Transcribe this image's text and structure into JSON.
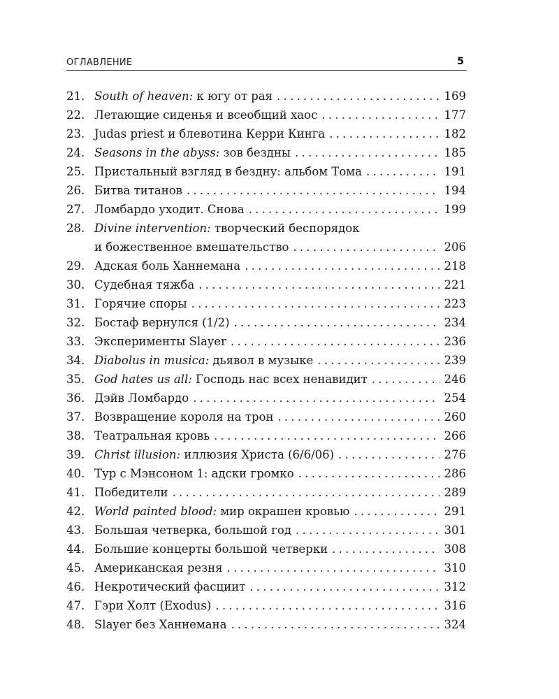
{
  "header": {
    "title": "ОГЛАВЛЕНИЕ",
    "page_number": "5"
  },
  "entries": [
    {
      "num": "21.",
      "italic": "South of heaven:",
      "text": " к югу от рая",
      "page": "169"
    },
    {
      "num": "22.",
      "italic": "",
      "text": "Летающие сиденья и всеобщий хаос",
      "page": "177"
    },
    {
      "num": "23.",
      "italic": "",
      "text": "Judas priest и блевотина Керри Кинга",
      "page": "182"
    },
    {
      "num": "24.",
      "italic": "Seasons in the abyss:",
      "text": " зов бездны",
      "page": "185"
    },
    {
      "num": "25.",
      "italic": "",
      "text": "Пристальный взгляд в бездну: альбом Тома",
      "page": "191"
    },
    {
      "num": "26.",
      "italic": "",
      "text": "Битва титанов",
      "page": "194"
    },
    {
      "num": "27.",
      "italic": "",
      "text": "Ломбардо уходит. Снова",
      "page": "199"
    },
    {
      "num": "28.",
      "italic": "Divine intervention:",
      "text": " творческий беспорядок",
      "text2": "и божественное вмешательство",
      "page": "206"
    },
    {
      "num": "29.",
      "italic": "",
      "text": "Адская боль Ханнемана",
      "page": "218"
    },
    {
      "num": "30.",
      "italic": "",
      "text": "Судебная тяжба",
      "page": "221"
    },
    {
      "num": "31.",
      "italic": "",
      "text": "Горячие споры",
      "page": "223"
    },
    {
      "num": "32.",
      "italic": "",
      "text": "Бостаф вернулся (1/2)",
      "page": "234"
    },
    {
      "num": "33.",
      "italic": "",
      "text": "Эксперименты Slayer",
      "page": "236"
    },
    {
      "num": "34.",
      "italic": "Diabolus in musica:",
      "text": " дьявол в музыке",
      "page": "239"
    },
    {
      "num": "35.",
      "italic": "God hates us all:",
      "text": " Господь нас всех ненавидит",
      "page": "246"
    },
    {
      "num": "36.",
      "italic": "",
      "text": "Дэйв Ломбардо",
      "page": "254"
    },
    {
      "num": "37.",
      "italic": "",
      "text": "Возвращение короля на трон",
      "page": "260"
    },
    {
      "num": "38.",
      "italic": "",
      "text": "Театральная кровь",
      "page": "266"
    },
    {
      "num": "39.",
      "italic": "Christ illusion:",
      "text": " иллюзия Христа (6/6/06)",
      "page": "276"
    },
    {
      "num": "40.",
      "italic": "",
      "text": "Тур с Мэнсоном 1: адски громко",
      "page": "286"
    },
    {
      "num": "41.",
      "italic": "",
      "text": "Победители",
      "page": "289"
    },
    {
      "num": "42.",
      "italic": "World painted blood:",
      "text": " мир окрашен кровью",
      "page": "291"
    },
    {
      "num": "43.",
      "italic": "",
      "text": "Большая четверка, большой год",
      "page": "301"
    },
    {
      "num": "44.",
      "italic": "",
      "text": "Большие концерты большой четверки",
      "page": "308"
    },
    {
      "num": "45.",
      "italic": "",
      "text": "Американская резня",
      "page": "310"
    },
    {
      "num": "46.",
      "italic": "",
      "text": "Некротический фасциит",
      "page": "312"
    },
    {
      "num": "47.",
      "italic": "",
      "text": "Гэри Холт (Exodus)",
      "page": "316"
    },
    {
      "num": "48.",
      "italic": "",
      "text": "Slayer без Ханнемана",
      "page": "324"
    }
  ]
}
